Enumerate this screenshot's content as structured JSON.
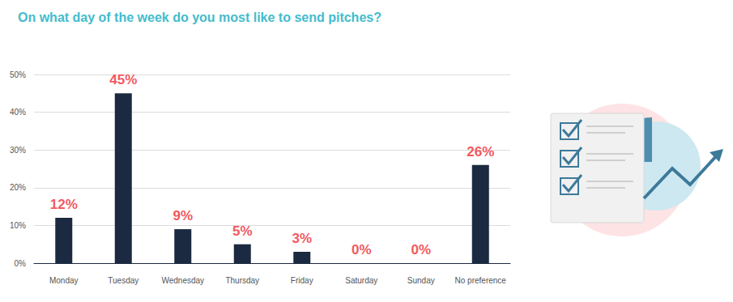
{
  "chart_data": {
    "type": "bar",
    "title": "On what day of the week do you most like to send pitches?",
    "categories": [
      "Monday",
      "Tuesday",
      "Wednesday",
      "Thursday",
      "Friday",
      "Saturday",
      "Sunday",
      "No preference"
    ],
    "values": [
      12,
      45,
      9,
      5,
      3,
      0,
      0,
      26
    ],
    "value_labels": [
      "12%",
      "45%",
      "9%",
      "5%",
      "3%",
      "0%",
      "0%",
      "26%"
    ],
    "color": "#1b2a40",
    "ylim": [
      0,
      50
    ],
    "yticks": [
      {
        "value": 0,
        "label": "0%"
      },
      {
        "value": 10,
        "label": "10%"
      },
      {
        "value": 20,
        "label": "20%"
      },
      {
        "value": 30,
        "label": "30%"
      },
      {
        "value": 40,
        "label": "40%"
      },
      {
        "value": 50,
        "label": "50%"
      }
    ],
    "grid": true,
    "data_labels": true
  }
}
